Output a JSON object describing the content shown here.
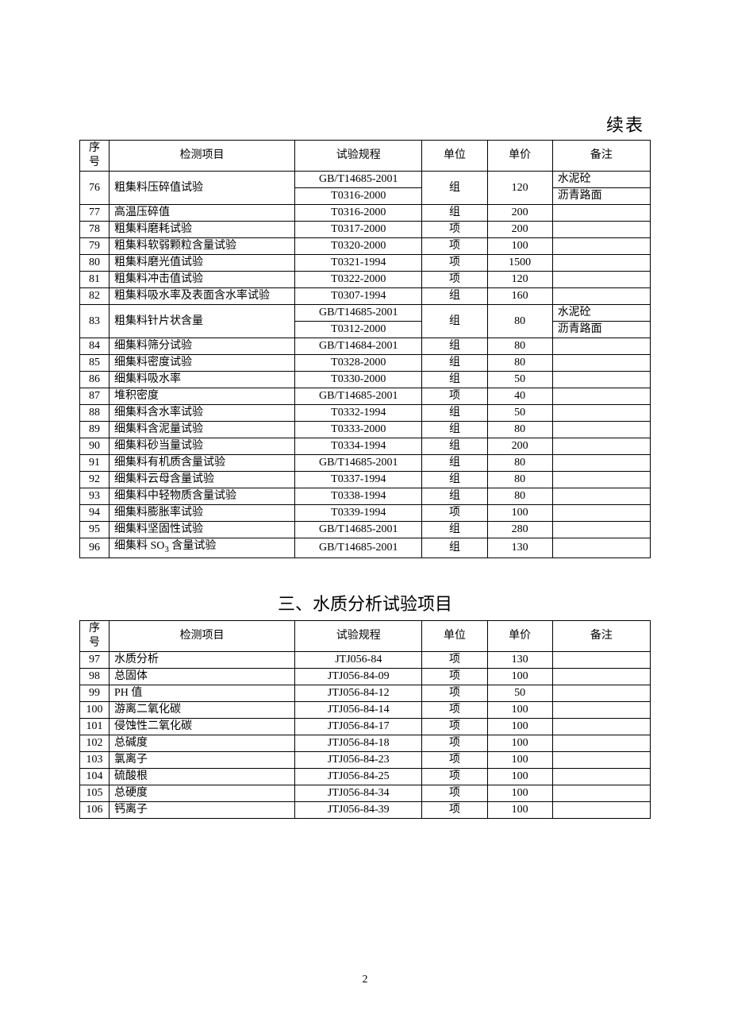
{
  "continued_label": "续表",
  "table1": {
    "headers": [
      "序号",
      "检测项目",
      "试验规程",
      "单位",
      "单价",
      "备注"
    ],
    "rows": [
      {
        "seq": "76",
        "item": "粗集料压碎值试验",
        "stds": [
          "GB/T14685-2001",
          "T0316-2000"
        ],
        "unit": "组",
        "price": "120",
        "remarks": [
          "水泥砼",
          "沥青路面"
        ],
        "merged": true
      },
      {
        "seq": "77",
        "item": "高温压碎值",
        "std": "T0316-2000",
        "unit": "组",
        "price": "200",
        "remark": ""
      },
      {
        "seq": "78",
        "item": "粗集料磨耗试验",
        "std": "T0317-2000",
        "unit": "项",
        "price": "200",
        "remark": ""
      },
      {
        "seq": "79",
        "item": "粗集料软弱颗粒含量试验",
        "std": "T0320-2000",
        "unit": "项",
        "price": "100",
        "remark": ""
      },
      {
        "seq": "80",
        "item": "粗集料磨光值试验",
        "std": "T0321-1994",
        "unit": "项",
        "price": "1500",
        "remark": ""
      },
      {
        "seq": "81",
        "item": "粗集料冲击值试验",
        "std": "T0322-2000",
        "unit": "项",
        "price": "120",
        "remark": ""
      },
      {
        "seq": "82",
        "item": "粗集料吸水率及表面含水率试验",
        "std": "T0307-1994",
        "unit": "组",
        "price": "160",
        "remark": ""
      },
      {
        "seq": "83",
        "item": "粗集料针片状含量",
        "stds": [
          "GB/T14685-2001",
          "T0312-2000"
        ],
        "unit": "组",
        "price": "80",
        "remarks": [
          "水泥砼",
          "沥青路面"
        ],
        "merged": true
      },
      {
        "seq": "84",
        "item": "细集料筛分试验",
        "std": "GB/T14684-2001",
        "unit": "组",
        "price": "80",
        "remark": ""
      },
      {
        "seq": "85",
        "item": "细集料密度试验",
        "std": "T0328-2000",
        "unit": "组",
        "price": "80",
        "remark": ""
      },
      {
        "seq": "86",
        "item": "细集料吸水率",
        "std": "T0330-2000",
        "unit": "组",
        "price": "50",
        "remark": ""
      },
      {
        "seq": "87",
        "item": "堆积密度",
        "std": "GB/T14685-2001",
        "unit": "项",
        "price": "40",
        "remark": ""
      },
      {
        "seq": "88",
        "item": "细集料含水率试验",
        "std": "T0332-1994",
        "unit": "组",
        "price": "50",
        "remark": ""
      },
      {
        "seq": "89",
        "item": "细集料含泥量试验",
        "std": "T0333-2000",
        "unit": "组",
        "price": "80",
        "remark": ""
      },
      {
        "seq": "90",
        "item": "细集料砂当量试验",
        "std": "T0334-1994",
        "unit": "组",
        "price": "200",
        "remark": ""
      },
      {
        "seq": "91",
        "item": "细集料有机质含量试验",
        "std": "GB/T14685-2001",
        "unit": "组",
        "price": "80",
        "remark": ""
      },
      {
        "seq": "92",
        "item": "细集料云母含量试验",
        "std": "T0337-1994",
        "unit": "组",
        "price": "80",
        "remark": ""
      },
      {
        "seq": "93",
        "item": "细集料中轻物质含量试验",
        "std": "T0338-1994",
        "unit": "组",
        "price": "80",
        "remark": ""
      },
      {
        "seq": "94",
        "item": "细集料膨胀率试验",
        "std": "T0339-1994",
        "unit": "项",
        "price": "100",
        "remark": ""
      },
      {
        "seq": "95",
        "item": "细集料坚固性试验",
        "std": "GB/T14685-2001",
        "unit": "组",
        "price": "280",
        "remark": ""
      },
      {
        "seq": "96",
        "item_html": "细集料 SO<span class=\"sub\">3</span> 含量试验",
        "std": "GB/T14685-2001",
        "unit": "组",
        "price": "130",
        "remark": ""
      }
    ]
  },
  "section_title": "三、水质分析试验项目",
  "table2": {
    "headers": [
      "序号",
      "检测项目",
      "试验规程",
      "单位",
      "单价",
      "备注"
    ],
    "rows": [
      {
        "seq": "97",
        "item": "水质分析",
        "std": "JTJ056-84",
        "unit": "项",
        "price": "130",
        "remark": ""
      },
      {
        "seq": "98",
        "item": "总固体",
        "std": "JTJ056-84-09",
        "unit": "项",
        "price": "100",
        "remark": ""
      },
      {
        "seq": "99",
        "item": "PH 值",
        "std": "JTJ056-84-12",
        "unit": "项",
        "price": "50",
        "remark": ""
      },
      {
        "seq": "100",
        "item": "游离二氧化碳",
        "std": "JTJ056-84-14",
        "unit": "项",
        "price": "100",
        "remark": ""
      },
      {
        "seq": "101",
        "item": "侵蚀性二氧化碳",
        "std": "JTJ056-84-17",
        "unit": "项",
        "price": "100",
        "remark": ""
      },
      {
        "seq": "102",
        "item": "总碱度",
        "std": "JTJ056-84-18",
        "unit": "项",
        "price": "100",
        "remark": ""
      },
      {
        "seq": "103",
        "item": "氯离子",
        "std": "JTJ056-84-23",
        "unit": "项",
        "price": "100",
        "remark": ""
      },
      {
        "seq": "104",
        "item": "硫酸根",
        "std": "JTJ056-84-25",
        "unit": "项",
        "price": "100",
        "remark": ""
      },
      {
        "seq": "105",
        "item": "总硬度",
        "std": "JTJ056-84-34",
        "unit": "项",
        "price": "100",
        "remark": ""
      },
      {
        "seq": "106",
        "item": "钙离子",
        "std": "JTJ056-84-39",
        "unit": "项",
        "price": "100",
        "remark": ""
      }
    ]
  },
  "page_number": "2"
}
